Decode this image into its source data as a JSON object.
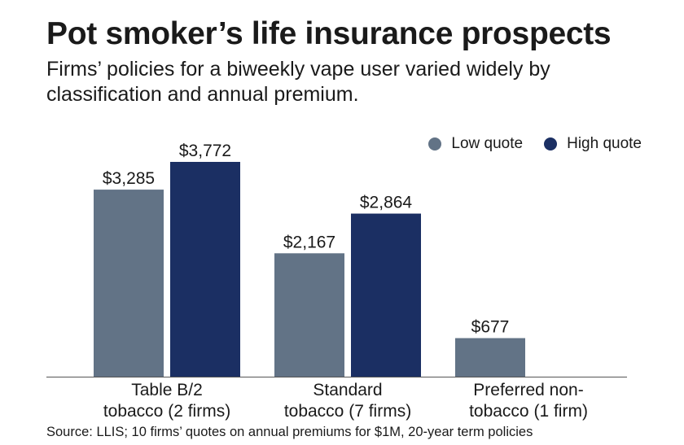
{
  "header": {
    "title": "Pot smoker’s life insurance prospects",
    "subtitle": "Firms’ policies for a biweekly vape user varied widely by classification and annual premium."
  },
  "legend": [
    {
      "label": "Low quote",
      "color": "#627386"
    },
    {
      "label": "High quote",
      "color": "#1b2f63"
    }
  ],
  "source": "Source: LLIS; 10 firms’ quotes on annual premiums for $1M, 20-year term policies",
  "chart_data": {
    "type": "bar",
    "categories": [
      [
        "Table B/2",
        "tobacco (2 firms)"
      ],
      [
        "Standard",
        "tobacco (7 firms)"
      ],
      [
        "Preferred non-",
        "tobacco (1 firm)"
      ]
    ],
    "series": [
      {
        "name": "Low quote",
        "color": "#627386",
        "values": [
          3285,
          2167,
          677
        ],
        "labels": [
          "$3,285",
          "$2,167",
          "$677"
        ]
      },
      {
        "name": "High quote",
        "color": "#1b2f63",
        "values": [
          3772,
          2864,
          null
        ],
        "labels": [
          "$3,772",
          "$2,864",
          ""
        ]
      }
    ],
    "ylim": [
      0,
      3772
    ],
    "legend_position": "top-right",
    "grid": false
  }
}
